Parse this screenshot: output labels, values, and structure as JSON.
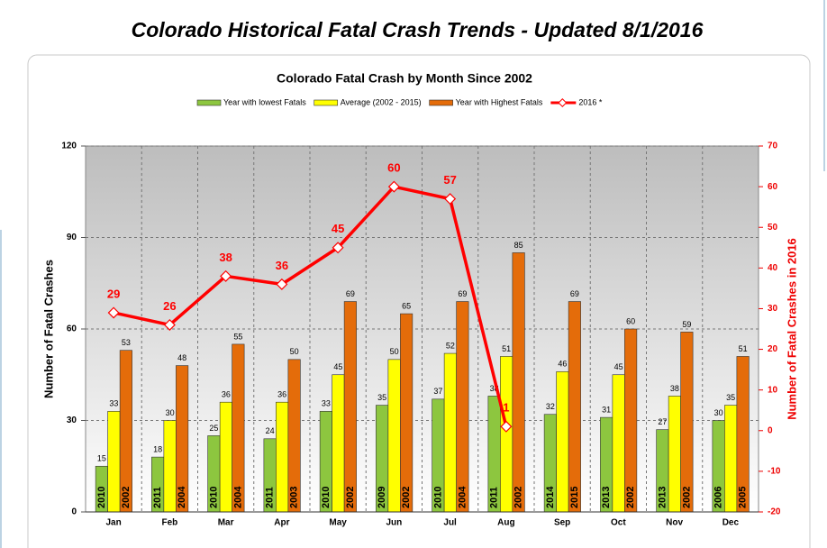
{
  "page_title": "Colorado Historical Fatal Crash Trends - Updated 8/1/2016",
  "chart_data": {
    "type": "bar",
    "title": "Colorado Fatal Crash by Month Since 2002",
    "y_label": "Number of Fatal Crashes",
    "y2_label": "Number of Fatal Crashes in 2016",
    "categories": [
      "Jan",
      "Feb",
      "Mar",
      "Apr",
      "May",
      "Jun",
      "Jul",
      "Aug",
      "Sep",
      "Oct",
      "Nov",
      "Dec"
    ],
    "ylim": [
      0,
      120
    ],
    "yticks": [
      0,
      30,
      60,
      90,
      120
    ],
    "y2lim": [
      -20,
      70
    ],
    "y2ticks": [
      -20,
      -10,
      0,
      10,
      20,
      30,
      40,
      50,
      60,
      70
    ],
    "grid": true,
    "series": [
      {
        "name": "Year with lowest Fatals",
        "color": "#8dc63f",
        "type": "bar",
        "values": [
          15,
          18,
          25,
          24,
          33,
          35,
          37,
          38,
          32,
          31,
          27,
          30
        ],
        "year_labels": [
          "2010",
          "2011",
          "2010",
          "2011",
          "2010",
          "2009",
          "2010",
          "2011",
          "2014",
          "2013",
          "2013",
          "2006"
        ]
      },
      {
        "name": "Average (2002 - 2015)",
        "color": "#ffff00",
        "type": "bar",
        "values": [
          33,
          30,
          36,
          36,
          45,
          50,
          52,
          51,
          46,
          45,
          38,
          35
        ]
      },
      {
        "name": "Year with Highest Fatals",
        "color": "#e46c0a",
        "type": "bar",
        "values": [
          53,
          48,
          55,
          50,
          69,
          65,
          69,
          85,
          69,
          60,
          59,
          51
        ],
        "year_labels": [
          "2002",
          "2004",
          "2004",
          "2003",
          "2002",
          "2002",
          "2004",
          "2002",
          "2015",
          "2002",
          "2002",
          "2005"
        ]
      },
      {
        "name": "2016 *",
        "color": "#ff0000",
        "type": "line",
        "axis": "y2",
        "values": [
          29,
          26,
          38,
          36,
          45,
          60,
          57,
          1,
          null,
          null,
          null,
          null
        ]
      }
    ]
  }
}
